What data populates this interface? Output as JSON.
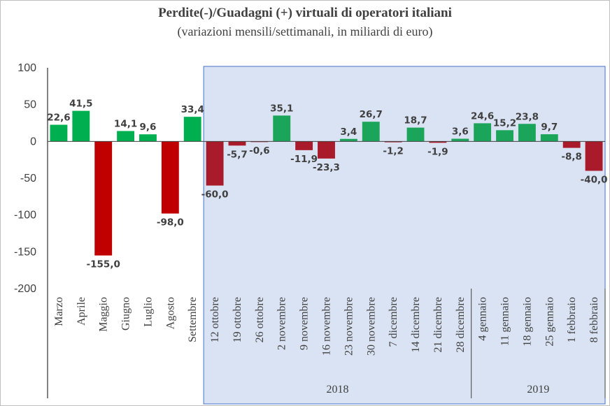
{
  "chart_data": {
    "type": "bar",
    "title": "Perdite(-)/Guadagni (+) virtuali di operatori italiani",
    "subtitle": "(variazioni mensili/settimanali, in miliardi di euro)",
    "ylim": [
      -200,
      100
    ],
    "yticks": [
      100,
      50,
      0,
      -50,
      -100,
      -150,
      -200
    ],
    "categories": [
      "Marzo",
      "Aprile",
      "Maggio",
      "Giugno",
      "Luglio",
      "Agosto",
      "Settembre",
      "12 ottobre",
      "19 ottobre",
      "26 ottobre",
      "2 novembre",
      "9 novembre",
      "16 novembre",
      "23 novembre",
      "30 novembre",
      "7 dicembre",
      "14 dicembre",
      "21 dicembre",
      "28 dicembre",
      "4 gennaio",
      "11 gennaio",
      "18 gennaio",
      "25 gennaio",
      "1 febbraio",
      "8 febbraio"
    ],
    "values": [
      22.6,
      41.5,
      -155.0,
      14.1,
      9.6,
      -98.0,
      33.4,
      -60.0,
      -5.7,
      -0.6,
      35.1,
      -11.9,
      -23.3,
      3.4,
      26.7,
      -1.2,
      18.7,
      -1.9,
      3.6,
      24.6,
      15.2,
      23.8,
      9.7,
      -8.8,
      -40.0
    ],
    "labels": [
      "22,6",
      "41,5",
      "-155,0",
      "14,1",
      "9,6",
      "-98,0",
      "33,4",
      "-60,0",
      "-5,7",
      "-0,6",
      "35,1",
      "-11,9",
      "-23,3",
      "3,4",
      "26,7",
      "-1,2",
      "18,7",
      "-1,9",
      "3,6",
      "24,6",
      "15,2",
      "23,8",
      "9,7",
      "-8,8",
      "-40,0"
    ],
    "year_groups": [
      {
        "label": "2018",
        "from": 7,
        "to": 18
      },
      {
        "label": "2019",
        "from": 19,
        "to": 24
      }
    ],
    "highlight_from_index": 7,
    "colors": {
      "monthly_positive": "#00b050",
      "monthly_negative": "#c00000",
      "weekly_positive": "#1aa55a",
      "weekly_negative": "#a91b2a",
      "highlight_background": "#dae3f3",
      "highlight_border": "#4472c4",
      "axis": "#404040"
    }
  }
}
